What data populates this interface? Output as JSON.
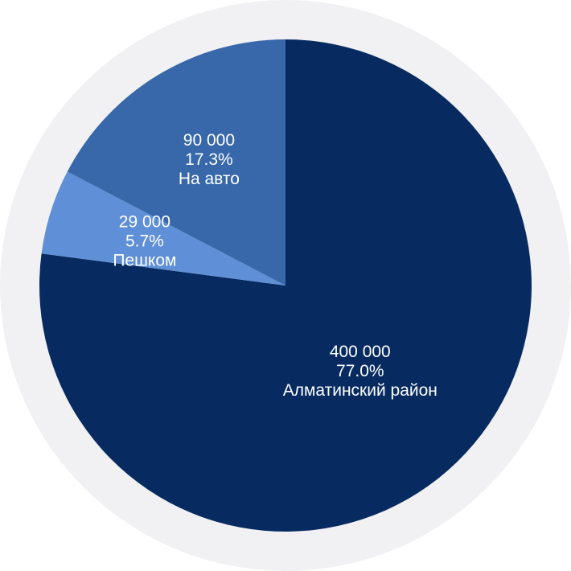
{
  "chart_data": {
    "type": "pie",
    "start_angle_deg": 0,
    "direction": "clockwise",
    "slices": [
      {
        "name": "Алматинский район",
        "value": 400000,
        "value_label": "400 000",
        "percent_label": "77.0%",
        "color": "#072b60"
      },
      {
        "name": "Пешком",
        "value": 29000,
        "value_label": "29 000",
        "percent_label": "5.7%",
        "color": "#5f8fd6"
      },
      {
        "name": "На авто",
        "value": 90000,
        "value_label": "90 000",
        "percent_label": "17.3%",
        "color": "#3868aa"
      }
    ],
    "colors": {
      "background_ring": "#f1f1f3"
    }
  }
}
